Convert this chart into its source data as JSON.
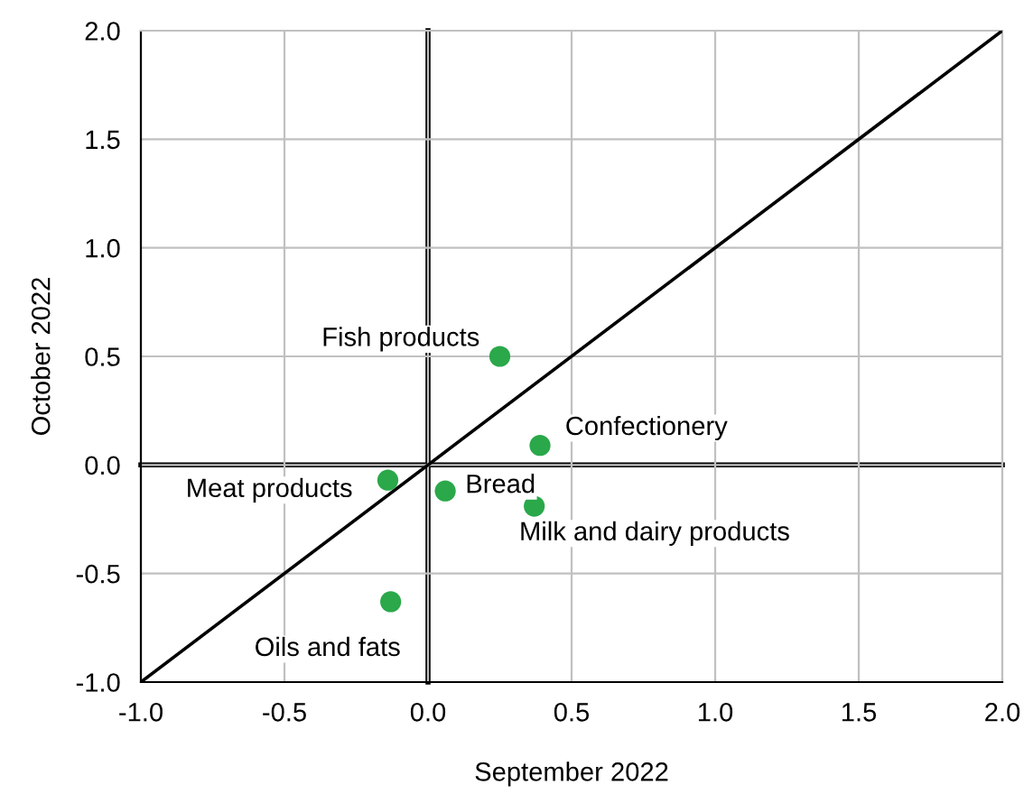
{
  "chart_data": {
    "type": "scatter",
    "xlabel": "September 2022",
    "ylabel": "October 2022",
    "xlim": [
      -1,
      2
    ],
    "ylim": [
      -1,
      2
    ],
    "xticks": [
      {
        "value": -1,
        "label": "-1.0"
      },
      {
        "value": -0.5,
        "label": "-0.5"
      },
      {
        "value": 0,
        "label": "0.0"
      },
      {
        "value": 0.5,
        "label": "0.5"
      },
      {
        "value": 1,
        "label": "1.0"
      },
      {
        "value": 1.5,
        "label": "1.5"
      },
      {
        "value": 2,
        "label": "2.0"
      }
    ],
    "yticks": [
      {
        "value": -1,
        "label": "-1.0"
      },
      {
        "value": -0.5,
        "label": "-0.5"
      },
      {
        "value": 0,
        "label": "0.0"
      },
      {
        "value": 0.5,
        "label": "0.5"
      },
      {
        "value": 1,
        "label": "1.0"
      },
      {
        "value": 1.5,
        "label": "1.5"
      },
      {
        "value": 2,
        "label": "2.0"
      }
    ],
    "grid": true,
    "series": [
      {
        "marker": "circle",
        "color": "#2aa84a",
        "x": [
          0.25,
          0.39,
          -0.14,
          0.06,
          0.37,
          -0.13
        ],
        "values": [
          0.5,
          0.09,
          -0.07,
          -0.12,
          -0.19,
          -0.63
        ]
      },
      {
        "type": "line",
        "color": "#000000",
        "x": [
          -1,
          2
        ],
        "values": [
          -1,
          2
        ]
      }
    ],
    "annotations": [
      {
        "text": "Fish products",
        "x": 0.25,
        "y": 0.5
      },
      {
        "text": "Confectionery",
        "x": 0.39,
        "y": 0.09
      },
      {
        "text": "Meat products",
        "x": -0.14,
        "y": -0.07
      },
      {
        "text": "Bread",
        "x": 0.06,
        "y": -0.12
      },
      {
        "text": "Milk and dairy products",
        "x": 0.37,
        "y": -0.19
      },
      {
        "text": "Oils and fats",
        "x": -0.13,
        "y": -0.63
      }
    ]
  }
}
